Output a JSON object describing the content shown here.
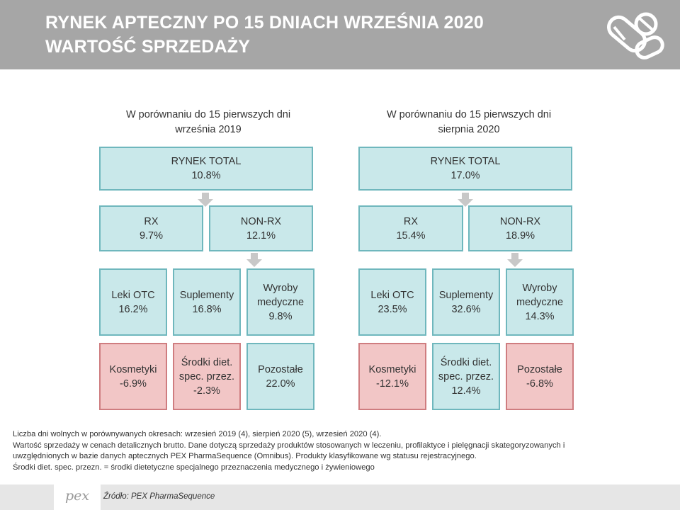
{
  "header": {
    "title_line1": "RYNEK APTECZNY PO 15 DNIACH WRZEŚNIA 2020",
    "title_line2": "WARTOŚĆ SPRZEDAŻY",
    "logo_icon": "pills-icon"
  },
  "panels": [
    {
      "caption_line1": "W porównaniu do 15 pierwszych dni",
      "caption_line2": "września 2019",
      "total": {
        "label": "RYNEK TOTAL",
        "value": "10.8%"
      },
      "rx": {
        "label": "RX",
        "value": "9.7%"
      },
      "nonrx": {
        "label": "NON-RX",
        "value": "12.1%"
      },
      "categories": [
        {
          "lines": [
            "Leki OTC",
            "16.2%"
          ],
          "negative": false
        },
        {
          "lines": [
            "Suplementy",
            "16.8%"
          ],
          "negative": false
        },
        {
          "lines": [
            "Wyroby",
            "medyczne",
            "9.8%"
          ],
          "negative": false
        },
        {
          "lines": [
            "Kosmetyki",
            "-6.9%"
          ],
          "negative": true
        },
        {
          "lines": [
            "Środki diet.",
            "spec. przez.",
            "-2.3%"
          ],
          "negative": true
        },
        {
          "lines": [
            "Pozostałe",
            "22.0%"
          ],
          "negative": false
        }
      ]
    },
    {
      "caption_line1": "W porównaniu do 15 pierwszych dni",
      "caption_line2": "sierpnia 2020",
      "total": {
        "label": "RYNEK TOTAL",
        "value": "17.0%"
      },
      "rx": {
        "label": "RX",
        "value": "15.4%"
      },
      "nonrx": {
        "label": "NON-RX",
        "value": "18.9%"
      },
      "categories": [
        {
          "lines": [
            "Leki OTC",
            "23.5%"
          ],
          "negative": false
        },
        {
          "lines": [
            "Suplementy",
            "32.6%"
          ],
          "negative": false
        },
        {
          "lines": [
            "Wyroby",
            "medyczne",
            "14.3%"
          ],
          "negative": false
        },
        {
          "lines": [
            "Kosmetyki",
            "-12.1%"
          ],
          "negative": true
        },
        {
          "lines": [
            "Środki diet.",
            "spec. przez.",
            "12.4%"
          ],
          "negative": false
        },
        {
          "lines": [
            "Pozostałe",
            "-6.8%"
          ],
          "negative": true
        }
      ]
    }
  ],
  "notes": [
    "Liczba dni wolnych w porównywanych okresach: wrzesień 2019 (4), sierpień 2020 (5), wrzesień 2020 (4).",
    "Wartość sprzedaży w cenach detalicznych brutto. Dane dotyczą sprzedaży produktów stosowanych w leczeniu, profilaktyce i pielęgnacji skategoryzowanych i",
    "uwzględnionych w bazie danych aptecznych PEX PharmaSequence (Omnibus). Produkty klasyfikowane wg statusu rejestracyjnego.",
    "Środki diet. spec. przezn. = środki dietetyczne specjalnego przeznaczenia medycznego i żywieniowego"
  ],
  "footer": {
    "logo_text": "pex",
    "source": "Źródło: PEX PharmaSequence"
  },
  "colors": {
    "header_bg": "#a6a6a6",
    "positive_fill": "#c9e8ea",
    "positive_border": "#6fb7bd",
    "negative_fill": "#f2c6c6",
    "negative_border": "#cf7d80",
    "arrow": "#c8c8c8"
  }
}
